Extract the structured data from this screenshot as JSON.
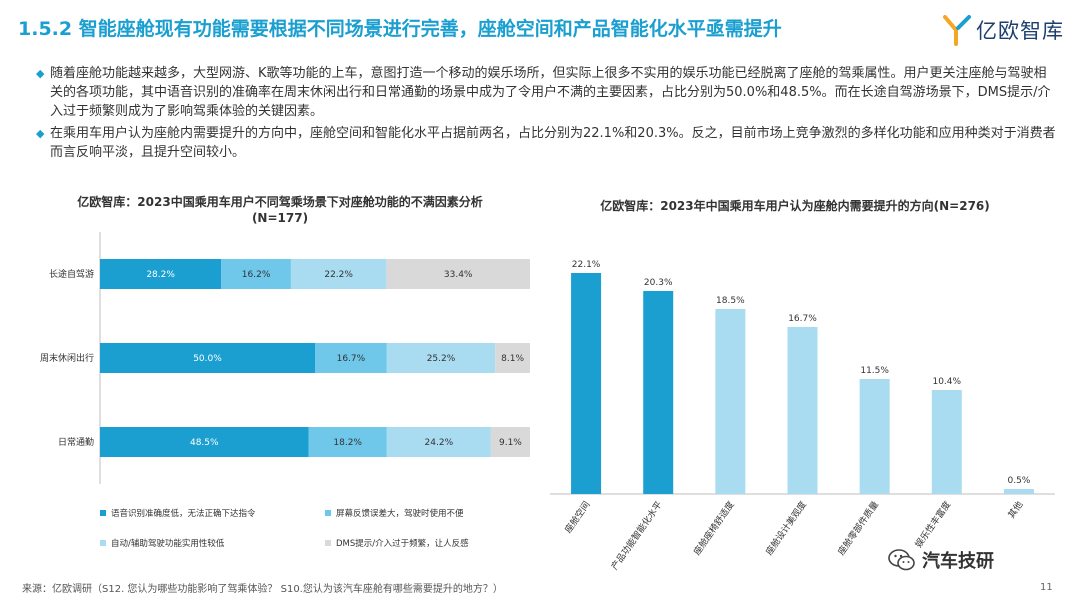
{
  "title": "1.5.2 智能座舱现有功能需要根据不同场景进行完善，座舱空间和产品智能化水平亟需提升",
  "logo_text": "亿欧智库",
  "bullets": [
    "随着座舱功能越来越多，大型网游、K歌等功能的上车，意图打造一个移动的娱乐场所，但实际上很多不实用的娱乐功能已经脱离了座舱的驾乘属性。用户更关注座舱与驾驶相关的各项功能，其中语音识别的准确率在周末休闲出行和日常通勤的场景中成为了令用户不满的主要因素，占比分别为50.0%和48.5%。而在长途自驾游场景下，DMS提示/介入过于频繁则成为了影响驾乘体验的关键因素。",
    "在乘用车用户认为座舱内需要提升的方向中，座舱空间和智能化水平占据前两名，占比分别为22.1%和20.3%。反之，目前市场上竞争激烈的多样化功能和应用种类对于消费者而言反响平淡，且提升空间较小。"
  ],
  "colors": {
    "accent": "#1a9fd0",
    "light_blue": "#a9dcf1",
    "gray": "#d9d9d9",
    "seg1": "#1a9fd0",
    "seg2": "#6fc7ea",
    "seg3": "#a9dcf1",
    "seg4": "#d9d9d9"
  },
  "chart_data": [
    {
      "type": "bar",
      "orientation": "horizontal",
      "stacked": true,
      "title": "亿欧智库：2023中国乘用车用户不同驾乘场景下对座舱功能的不满因素分析",
      "subtitle": "(N=177)",
      "categories": [
        "长途自驾游",
        "周末休闲出行",
        "日常通勤"
      ],
      "series": [
        {
          "name": "语音识别准确度低，无法正确下达指令",
          "values": [
            28.2,
            50.0,
            48.5
          ]
        },
        {
          "name": "屏幕反馈误差大，驾驶时使用不便",
          "values": [
            16.2,
            16.7,
            18.2
          ]
        },
        {
          "name": "自动/辅助驾驶功能实用性较低",
          "values": [
            22.2,
            25.2,
            24.2
          ]
        },
        {
          "name": "DMS提示/介入过于频繁，让人反感",
          "values": [
            33.4,
            8.1,
            9.1
          ]
        }
      ],
      "value_labels": [
        [
          "28.2%",
          "16.2%",
          "22.2%",
          "33.4%"
        ],
        [
          "50.0%",
          "16.7%",
          "25.2%",
          "8.1%"
        ],
        [
          "48.5%",
          "18.2%",
          "24.2%",
          "9.1%"
        ]
      ],
      "xlim": [
        0,
        100
      ],
      "legend_position": "bottom",
      "grid": false
    },
    {
      "type": "bar",
      "orientation": "vertical",
      "title": "亿欧智库：2023年中国乘用车用户认为座舱内需要提升的方向(N=276)",
      "categories": [
        "座舱空间",
        "产品功能智能化水平",
        "座舱座椅舒适度",
        "座舱设计美观度",
        "座舱零部件质量",
        "娱乐性丰富度",
        "其他"
      ],
      "values": [
        22.1,
        20.3,
        18.5,
        16.7,
        11.5,
        10.4,
        0.5
      ],
      "value_labels": [
        "22.1%",
        "20.3%",
        "18.5%",
        "16.7%",
        "11.5%",
        "10.4%",
        "0.5%"
      ],
      "highlighted": [
        true,
        true,
        false,
        false,
        false,
        false,
        false
      ],
      "ylim": [
        0,
        24
      ],
      "grid": false
    }
  ],
  "footer": {
    "source": "来源：亿欧调研（S12. 您认为哪些功能影响了驾乘体验？ S10.您认为该汽车座舱有哪些需要提升的地方？）",
    "page_number": "11",
    "watermark": "汽车技研"
  }
}
